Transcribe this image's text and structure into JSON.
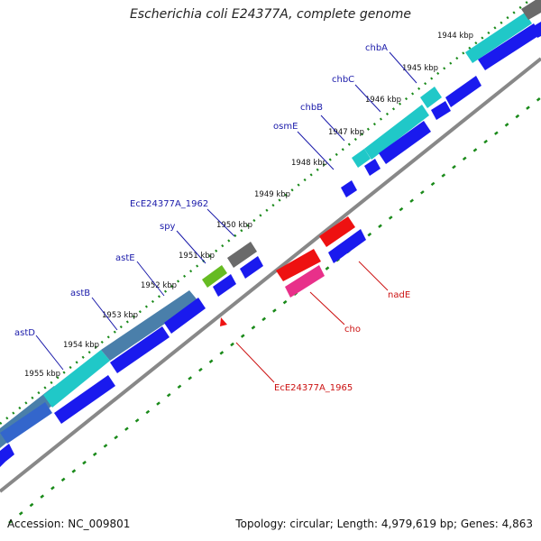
{
  "title": "Escherichia coli E24377A, complete genome",
  "accession": "Accession: NC_009801",
  "summary": "Topology: circular; Length: 4,979,619 bp; Genes: 4,863",
  "tick_labels": [
    "1944 kbp",
    "1945 kbp",
    "1946 kbp",
    "1947 kbp",
    "1948 kbp",
    "1949 kbp",
    "1950 kbp",
    "1951 kbp",
    "1952 kbp",
    "1953 kbp",
    "1954 kbp",
    "1955 kbp"
  ],
  "gene_labels_forward": [
    "chbA",
    "chbC",
    "chbB",
    "osmE",
    "EcE24377A_1962",
    "spy",
    "astE",
    "astB",
    "astD"
  ],
  "gene_labels_reverse": [
    "nadE",
    "cho",
    "EcE24377A_1965"
  ],
  "colors": {
    "gene_blue": "#1a1aee",
    "cds_cyan": "#20c8c8",
    "cds_steel": "#4a7faa",
    "cds_gray": "#6a6a6a",
    "cds_red": "#ee1111",
    "cds_pink": "#e8308a",
    "cds_green": "#66bb22",
    "label_forward": "#1a1aaa",
    "label_reverse": "#cc1111",
    "tick": "#1a8a1a",
    "backbone": "#888888"
  }
}
